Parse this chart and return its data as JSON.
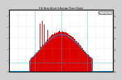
{
  "title": "E.A. Array Actual & Average Power Output",
  "bg_color": "#d0d0d0",
  "plot_bg": "#ffffff",
  "bar_color": "#dd0000",
  "avg_line_color": "#00aaff",
  "grid_color": "#aaaaaa",
  "ylim": [
    0,
    5.5
  ],
  "xlim": [
    0,
    288
  ],
  "n_bars": 288,
  "right_yticks": [
    0,
    1,
    2,
    3,
    4,
    5
  ],
  "right_ylabels": [
    "0",
    "1",
    "2",
    "3",
    "4",
    "5"
  ],
  "ylabel_left": "kW",
  "dashed_vline_positions": [
    72,
    144,
    216
  ],
  "dashed_hline_y": 0.8,
  "legend_actual_color": "#dd0000",
  "legend_avg_color": "#0000cc",
  "legend_items": [
    "Actual Power",
    "Average Power"
  ]
}
